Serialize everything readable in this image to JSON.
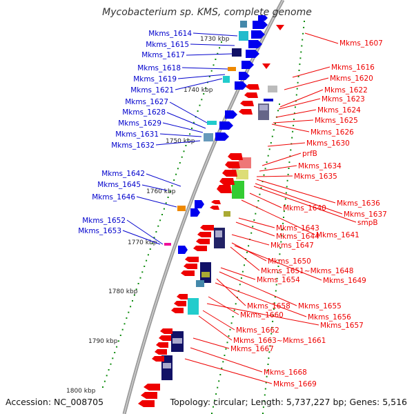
{
  "title": "Mycobacterium sp. KMS, complete genome",
  "accession": "Accession: NC_008705",
  "topology": "Topology: circular; Length: 5,737,227 bp; Genes: 5,516",
  "kbp_ticks": [
    "1730 kbp",
    "1740 kbp",
    "1750 kbp",
    "1760 kbp",
    "1770 kbp",
    "1780 kbp",
    "1790 kbp",
    "1800 kbp"
  ],
  "colors": {
    "forward_strand_label": "#0000cc",
    "reverse_strand_label": "#ff0000",
    "backbone": "#888888",
    "tick": "#0a8a0a"
  },
  "left_labels": [
    "Mkms_1614",
    "Mkms_1615",
    "Mkms_1617",
    "Mkms_1618",
    "Mkms_1619",
    "Mkms_1621",
    "Mkms_1627",
    "Mkms_1628",
    "Mkms_1629",
    "Mkms_1631",
    "Mkms_1632",
    "Mkms_1642",
    "Mkms_1645",
    "Mkms_1646",
    "Mkms_1652",
    "Mkms_1653"
  ],
  "right_labels": [
    "Mkms_1607",
    "Mkms_1616",
    "Mkms_1620",
    "Mkms_1622",
    "Mkms_1623",
    "Mkms_1624",
    "Mkms_1625",
    "Mkms_1626",
    "Mkms_1630",
    "prfB",
    "Mkms_1634",
    "Mkms_1635",
    "Mkms_1636",
    "Mkms_1637",
    "smpB",
    "Mkms_1640",
    "Mkms_1641",
    "Mkms_1643",
    "Mkms_1644",
    "Mkms_1647",
    "Mkms_1650",
    "Mkms_1651~Mkms_1648",
    "Mkms_1649",
    "Mkms_1654",
    "Mkms_1655",
    "Mkms_1658",
    "Mkms_1656",
    "Mkms_1660",
    "Mkms_1657",
    "Mkms_1662",
    "Mkms_1663~Mkms_1661",
    "Mkms_1667",
    "Mkms_1668",
    "Mkms_1669"
  ]
}
